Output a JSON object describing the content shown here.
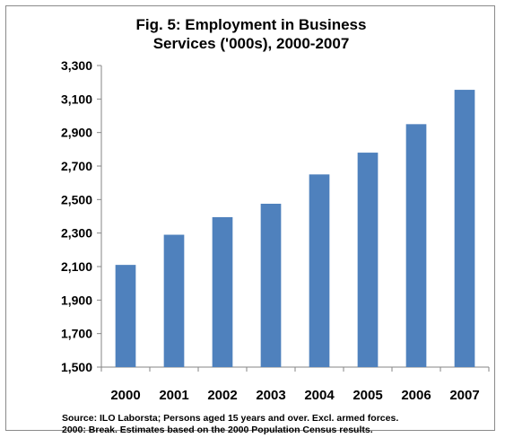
{
  "chart_data": {
    "type": "bar",
    "title_lines": [
      "Fig.  5: Employment in Business",
      "Services ('000s), 2000-2007"
    ],
    "categories": [
      "2000",
      "2001",
      "2002",
      "2003",
      "2004",
      "2005",
      "2006",
      "2007"
    ],
    "values": [
      2110,
      2290,
      2395,
      2475,
      2650,
      2780,
      2950,
      3155
    ],
    "ylim": [
      1500,
      3300
    ],
    "yticks": [
      1500,
      1700,
      1900,
      2100,
      2300,
      2500,
      2700,
      2900,
      3100,
      3300
    ],
    "ytick_labels": [
      "1,500",
      "1,700",
      "1,900",
      "2,100",
      "2,300",
      "2,500",
      "2,700",
      "2,900",
      "3,100",
      "3,300"
    ],
    "grid": false,
    "legend": "none",
    "bar_color": "#4f81bd",
    "axis_color": "#868686",
    "source_lines": [
      "Source: ILO Laborsta; Persons aged 15 years and over. Excl. armed forces.",
      "2000: Break. Estimates based on the 2000 Population Census results."
    ]
  }
}
